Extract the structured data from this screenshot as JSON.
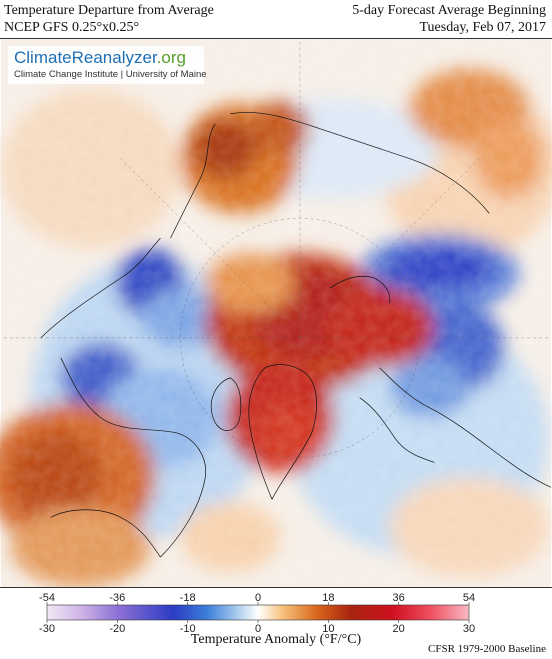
{
  "header": {
    "title_line1": "Temperature Departure from Average",
    "title_line2": "NCEP GFS 0.25°x0.25°",
    "forecast_line1": "5-day Forecast Average Beginning",
    "forecast_line2": "Tuesday, Feb 07, 2017"
  },
  "logo": {
    "name_part1": "Climate",
    "name_part2": "Reanalyzer",
    "name_part3": ".org",
    "subtitle": "Climate Change Institute | University of Maine"
  },
  "colorbar": {
    "fahrenheit_ticks": [
      "-54",
      "-36",
      "-18",
      "0",
      "18",
      "36",
      "54"
    ],
    "celsius_ticks": [
      "-30",
      "-20",
      "-10",
      "0",
      "10",
      "20",
      "30"
    ],
    "title": "Temperature Anomaly (°F/°C)",
    "baseline": "CFSR 1979-2000 Baseline",
    "colors": [
      "#f3e8f6",
      "#cdb3e6",
      "#8b6fd4",
      "#2b3cc4",
      "#3d7fd8",
      "#a9cbee",
      "#ffffff",
      "#f6c07a",
      "#d9661b",
      "#a8240f",
      "#cf1020",
      "#ef5060",
      "#f8b9c4"
    ]
  },
  "map": {
    "projection": "north-polar-stereographic",
    "warm_anomaly_color": "#c0200f",
    "cold_anomaly_color": "#2b3cc4"
  }
}
